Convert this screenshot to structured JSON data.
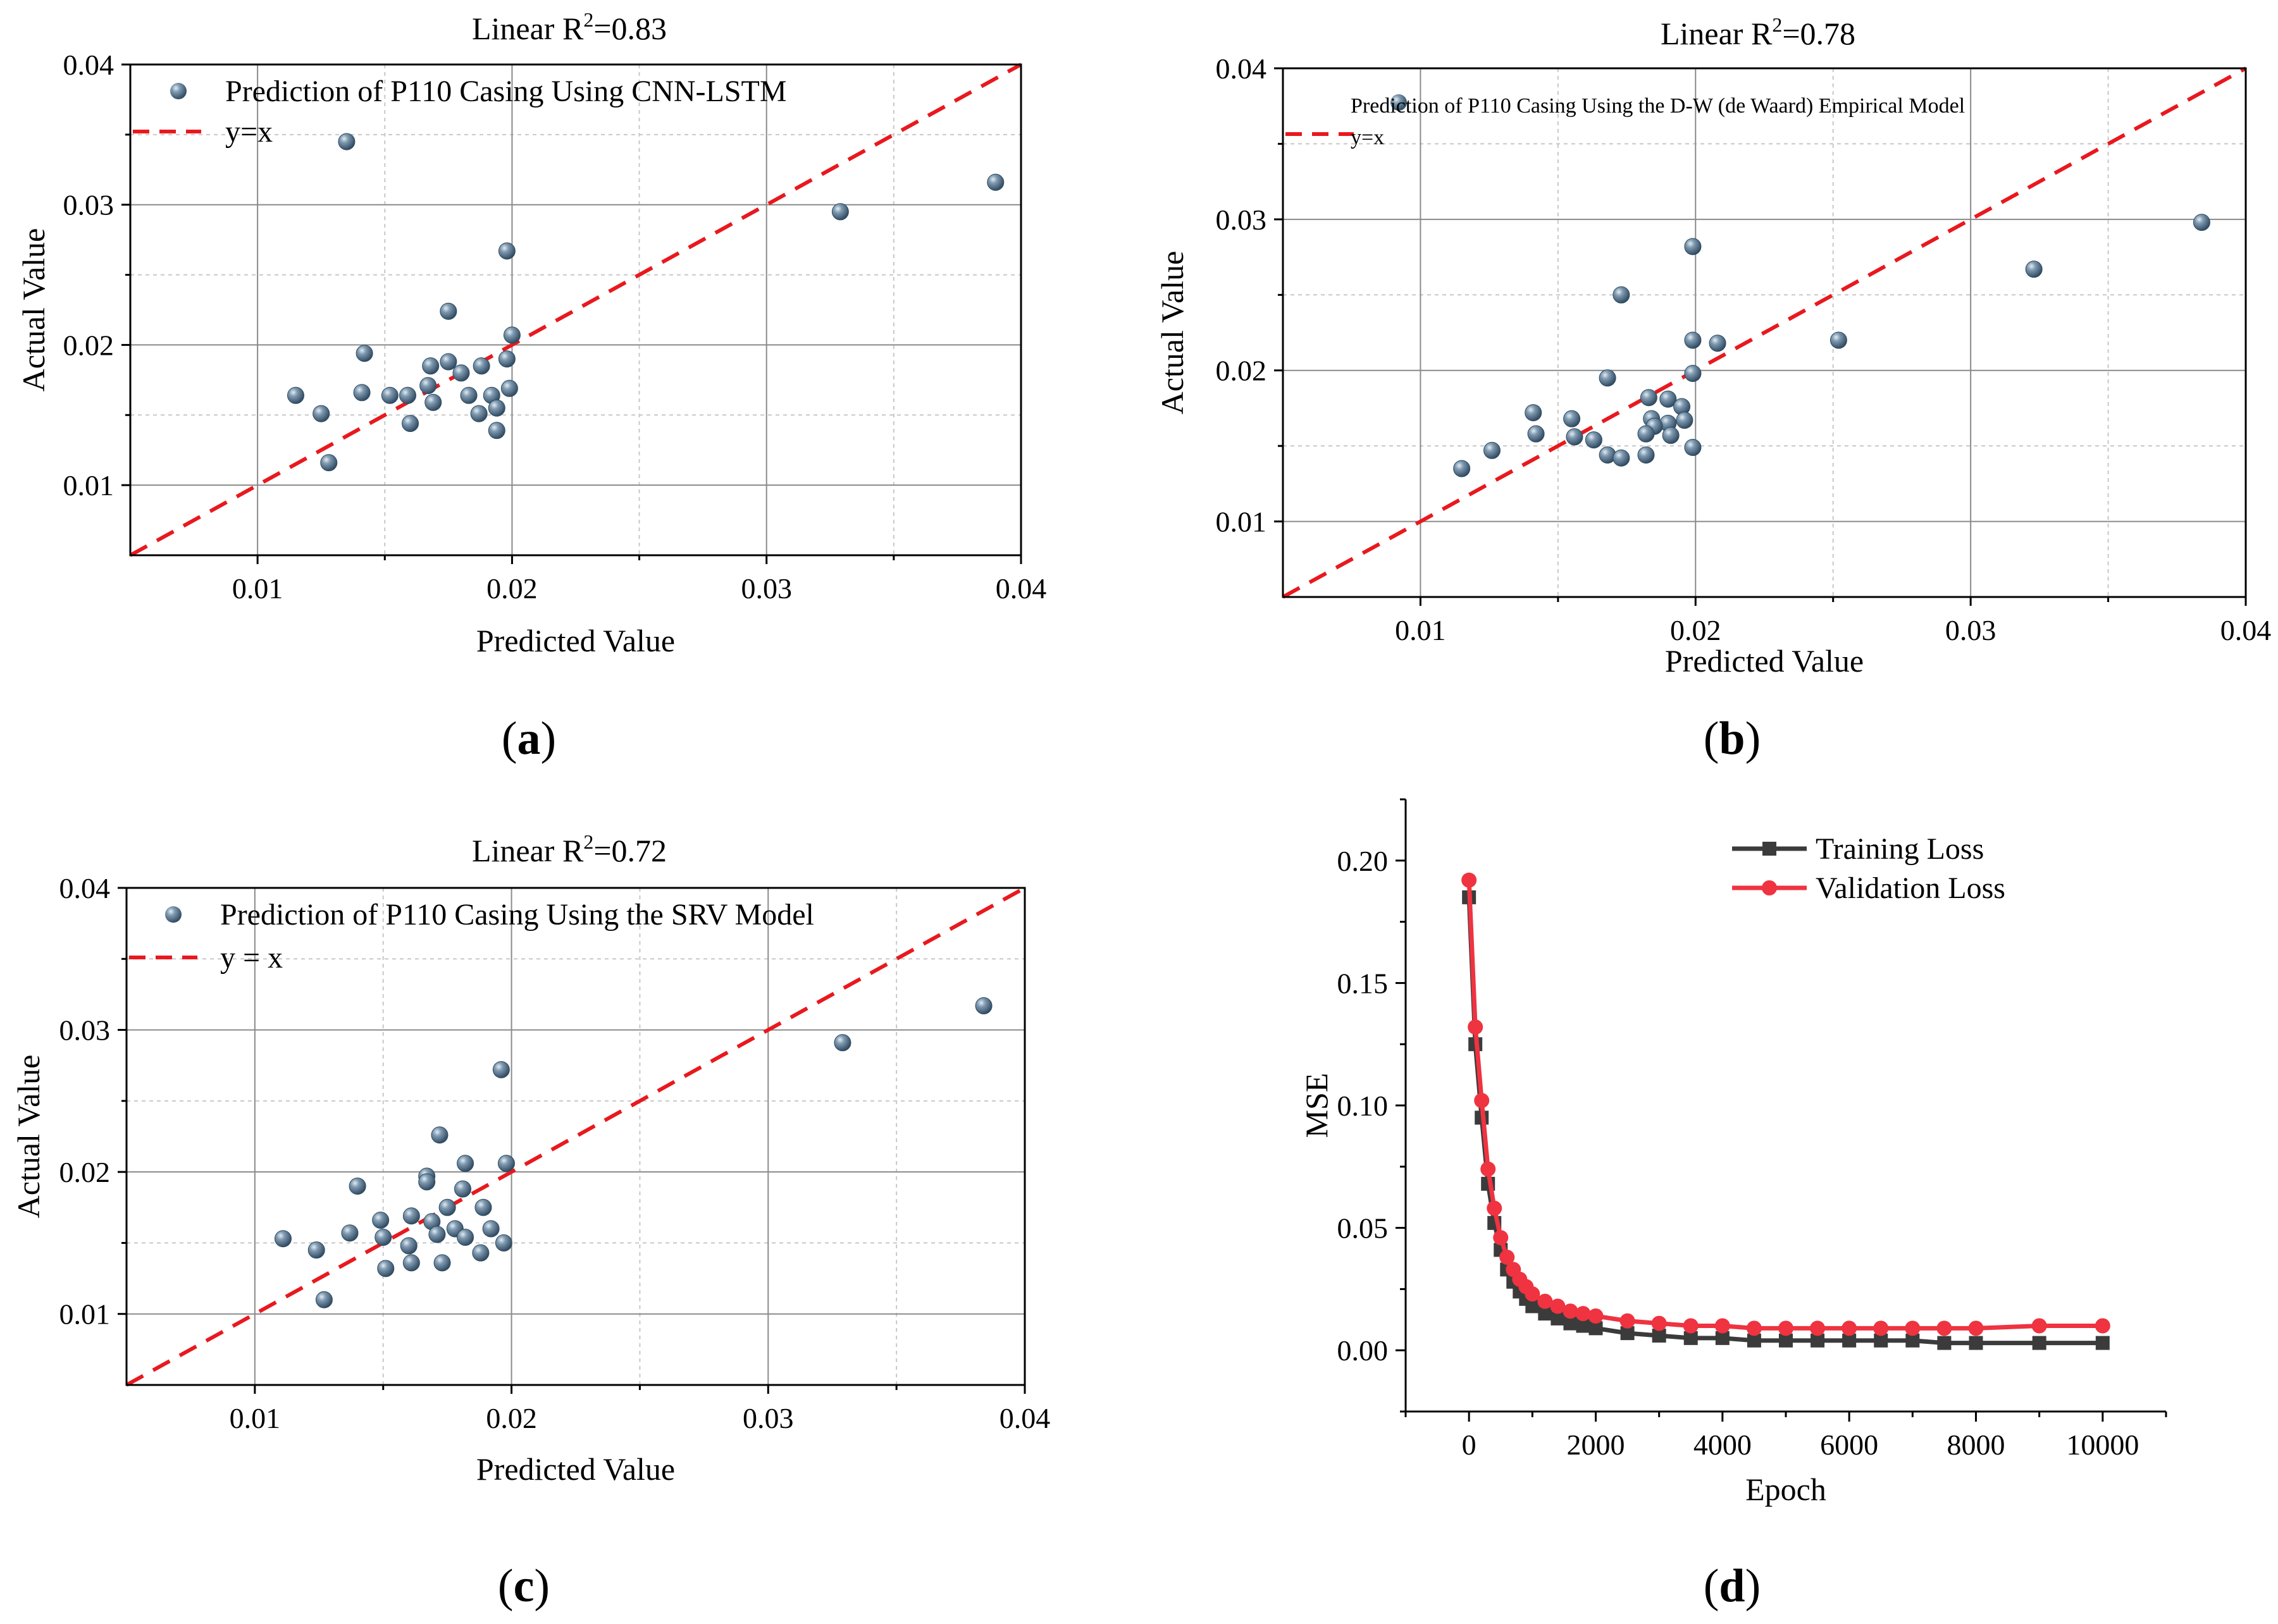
{
  "colors": {
    "point_fill": "#4f6f8a",
    "point_highlight": "#d8e4ee",
    "ref_line": "#e8191e",
    "training": "#3b3b3b",
    "validation": "#ef3340"
  },
  "chart_data": [
    {
      "id": "a",
      "type": "scatter",
      "panel_label": "a",
      "title_prefix": "Linear R",
      "title_sup": "2",
      "title_suffix": "=0.83",
      "xlabel": "Predicted Value",
      "ylabel": "Actual Value",
      "xlim": [
        0.005,
        0.04
      ],
      "ylim": [
        0.005,
        0.04
      ],
      "xticks": [
        "0.01",
        "0.02",
        "0.03",
        "0.04"
      ],
      "yticks": [
        "0.01",
        "0.02",
        "0.03",
        "0.04"
      ],
      "grid": true,
      "legend": [
        "Prediction of P110 Casing Using CNN-LSTM",
        "y=x"
      ],
      "legend_position": "top-left",
      "series": [
        {
          "name": "Prediction of P110 Casing Using CNN-LSTM",
          "points": [
            [
              0.0135,
              0.0345
            ],
            [
              0.039,
              0.0316
            ],
            [
              0.0329,
              0.0295
            ],
            [
              0.0198,
              0.0267
            ],
            [
              0.0175,
              0.0224
            ],
            [
              0.02,
              0.0207
            ],
            [
              0.0142,
              0.0194
            ],
            [
              0.0198,
              0.019
            ],
            [
              0.0175,
              0.0188
            ],
            [
              0.0168,
              0.0185
            ],
            [
              0.0188,
              0.0185
            ],
            [
              0.018,
              0.018
            ],
            [
              0.0167,
              0.0171
            ],
            [
              0.0199,
              0.0169
            ],
            [
              0.0115,
              0.0164
            ],
            [
              0.0141,
              0.0166
            ],
            [
              0.0152,
              0.0164
            ],
            [
              0.0159,
              0.0164
            ],
            [
              0.0183,
              0.0164
            ],
            [
              0.0192,
              0.0164
            ],
            [
              0.0169,
              0.0159
            ],
            [
              0.0194,
              0.0155
            ],
            [
              0.0125,
              0.0151
            ],
            [
              0.0187,
              0.0151
            ],
            [
              0.016,
              0.0144
            ],
            [
              0.0194,
              0.0139
            ],
            [
              0.0128,
              0.0116
            ]
          ]
        },
        {
          "name": "y=x",
          "line": [
            [
              0.005,
              0.005
            ],
            [
              0.04,
              0.04
            ]
          ]
        }
      ]
    },
    {
      "id": "b",
      "type": "scatter",
      "panel_label": "b",
      "title_prefix": "Linear R",
      "title_sup": "2",
      "title_suffix": "=0.78",
      "xlabel": "Predicted Value",
      "ylabel": "Actual Value",
      "xlim": [
        0.005,
        0.04
      ],
      "ylim": [
        0.005,
        0.04
      ],
      "xticks": [
        "0.01",
        "0.02",
        "0.03",
        "0.04"
      ],
      "yticks": [
        "0.01",
        "0.02",
        "0.03",
        "0.04"
      ],
      "grid": true,
      "legend": [
        "Prediction of P110 Casing Using the D-W (de Waard) Empirical Model",
        "y=x"
      ],
      "legend_position": "top-left",
      "series": [
        {
          "name": "Prediction of P110 Casing Using the D-W (de Waard) Empirical Model",
          "points": [
            [
              0.0384,
              0.0298
            ],
            [
              0.0199,
              0.0282
            ],
            [
              0.0323,
              0.0267
            ],
            [
              0.0173,
              0.025
            ],
            [
              0.0252,
              0.022
            ],
            [
              0.0199,
              0.022
            ],
            [
              0.0208,
              0.0218
            ],
            [
              0.0199,
              0.0198
            ],
            [
              0.0168,
              0.0195
            ],
            [
              0.0183,
              0.0182
            ],
            [
              0.019,
              0.0181
            ],
            [
              0.0195,
              0.0176
            ],
            [
              0.0141,
              0.0172
            ],
            [
              0.0155,
              0.0168
            ],
            [
              0.0184,
              0.0168
            ],
            [
              0.0196,
              0.0167
            ],
            [
              0.019,
              0.0165
            ],
            [
              0.0185,
              0.0163
            ],
            [
              0.0182,
              0.0158
            ],
            [
              0.0142,
              0.0158
            ],
            [
              0.0156,
              0.0156
            ],
            [
              0.0163,
              0.0154
            ],
            [
              0.0191,
              0.0157
            ],
            [
              0.0199,
              0.0149
            ],
            [
              0.0126,
              0.0147
            ],
            [
              0.0168,
              0.0144
            ],
            [
              0.0173,
              0.0142
            ],
            [
              0.0182,
              0.0144
            ],
            [
              0.0115,
              0.0135
            ]
          ]
        },
        {
          "name": "y=x",
          "line": [
            [
              0.005,
              0.005
            ],
            [
              0.04,
              0.04
            ]
          ]
        }
      ]
    },
    {
      "id": "c",
      "type": "scatter",
      "panel_label": "c",
      "title_prefix": "Linear R",
      "title_sup": "2",
      "title_suffix": "=0.72",
      "xlabel": "Predicted Value",
      "ylabel": "Actual Value",
      "xlim": [
        0.005,
        0.04
      ],
      "ylim": [
        0.005,
        0.04
      ],
      "xticks": [
        "0.01",
        "0.02",
        "0.03",
        "0.04"
      ],
      "yticks": [
        "0.01",
        "0.02",
        "0.03",
        "0.04"
      ],
      "grid": true,
      "legend": [
        "Prediction of P110 Casing Using the SRV Model",
        "y = x"
      ],
      "legend_position": "top-left",
      "series": [
        {
          "name": "Prediction of P110 Casing Using the SRV Model",
          "points": [
            [
              0.0384,
              0.0317
            ],
            [
              0.0329,
              0.0291
            ],
            [
              0.0196,
              0.0272
            ],
            [
              0.0172,
              0.0226
            ],
            [
              0.0182,
              0.0206
            ],
            [
              0.0198,
              0.0206
            ],
            [
              0.0167,
              0.0197
            ],
            [
              0.0167,
              0.0193
            ],
            [
              0.014,
              0.019
            ],
            [
              0.0181,
              0.0188
            ],
            [
              0.0175,
              0.0175
            ],
            [
              0.0189,
              0.0175
            ],
            [
              0.0161,
              0.0169
            ],
            [
              0.0149,
              0.0166
            ],
            [
              0.0169,
              0.0165
            ],
            [
              0.0192,
              0.016
            ],
            [
              0.0178,
              0.016
            ],
            [
              0.0137,
              0.0157
            ],
            [
              0.0171,
              0.0156
            ],
            [
              0.015,
              0.0154
            ],
            [
              0.0182,
              0.0154
            ],
            [
              0.0111,
              0.0153
            ],
            [
              0.0197,
              0.015
            ],
            [
              0.016,
              0.0148
            ],
            [
              0.0124,
              0.0145
            ],
            [
              0.0188,
              0.0143
            ],
            [
              0.0161,
              0.0136
            ],
            [
              0.0173,
              0.0136
            ],
            [
              0.0151,
              0.0132
            ],
            [
              0.0127,
              0.011
            ]
          ]
        },
        {
          "name": "y = x",
          "line": [
            [
              0.005,
              0.005
            ],
            [
              0.04,
              0.04
            ]
          ]
        }
      ]
    },
    {
      "id": "d",
      "type": "line",
      "panel_label": "d",
      "xlabel": "Epoch",
      "ylabel": "MSE",
      "xlim": [
        -1000,
        11000
      ],
      "ylim": [
        -0.025,
        0.225
      ],
      "xticks": [
        "0",
        "2000",
        "4000",
        "6000",
        "8000",
        "10000"
      ],
      "yticks": [
        "0.00",
        "0.05",
        "0.10",
        "0.15",
        "0.20"
      ],
      "grid": false,
      "legend": [
        "Training Loss",
        "Validation Loss"
      ],
      "legend_position": "top-right",
      "x": [
        0,
        100,
        200,
        300,
        400,
        500,
        600,
        700,
        800,
        900,
        1000,
        1200,
        1400,
        1600,
        1800,
        2000,
        2500,
        3000,
        3500,
        4000,
        4500,
        5000,
        5500,
        6000,
        6500,
        7000,
        7500,
        8000,
        9000,
        10000
      ],
      "series": [
        {
          "name": "Training Loss",
          "values": [
            0.185,
            0.125,
            0.095,
            0.068,
            0.052,
            0.041,
            0.033,
            0.028,
            0.024,
            0.021,
            0.018,
            0.015,
            0.013,
            0.011,
            0.01,
            0.009,
            0.007,
            0.006,
            0.005,
            0.005,
            0.004,
            0.004,
            0.004,
            0.004,
            0.004,
            0.004,
            0.003,
            0.003,
            0.003,
            0.003
          ]
        },
        {
          "name": "Validation Loss",
          "values": [
            0.192,
            0.132,
            0.102,
            0.074,
            0.058,
            0.046,
            0.038,
            0.033,
            0.029,
            0.026,
            0.023,
            0.02,
            0.018,
            0.016,
            0.015,
            0.014,
            0.012,
            0.011,
            0.01,
            0.01,
            0.009,
            0.009,
            0.009,
            0.009,
            0.009,
            0.009,
            0.009,
            0.009,
            0.01,
            0.01
          ]
        }
      ]
    }
  ]
}
